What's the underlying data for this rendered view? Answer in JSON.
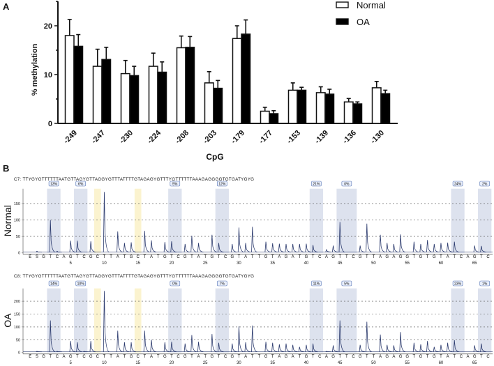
{
  "panel_labels": {
    "a": "A",
    "b": "B"
  },
  "chart_data": [
    {
      "type": "bar",
      "title": "",
      "xlabel": "CpG",
      "ylabel": "% methylation",
      "ylim": [
        0,
        25
      ],
      "yticks": [
        0,
        10,
        20
      ],
      "legend_position": "top-right",
      "categories": [
        "-249",
        "-247",
        "-230",
        "-224",
        "-208",
        "-203",
        "-179",
        "-177",
        "-153",
        "-139",
        "-136",
        "-130"
      ],
      "series": [
        {
          "name": "Normal",
          "color": "#ffffff",
          "values": [
            18.0,
            11.7,
            10.2,
            11.7,
            15.5,
            8.3,
            17.4,
            2.5,
            6.8,
            6.3,
            4.4,
            7.3
          ],
          "error_upper": [
            21.3,
            15.2,
            12.9,
            14.4,
            17.9,
            10.6,
            20.0,
            3.3,
            8.3,
            7.5,
            5.1,
            8.6
          ]
        },
        {
          "name": "OA",
          "color": "#000000",
          "values": [
            15.8,
            13.1,
            9.8,
            10.5,
            15.6,
            7.2,
            18.3,
            2.0,
            6.8,
            6.0,
            4.0,
            6.1
          ],
          "error_upper": [
            18.2,
            15.6,
            11.7,
            12.6,
            17.8,
            8.8,
            21.2,
            2.6,
            7.4,
            7.0,
            4.4,
            6.8
          ]
        }
      ]
    },
    {
      "type": "line",
      "sample": "Normal",
      "sequence_label": "C7: TTYGYGTTTTTTAATGTTAGYGTTAGGYGTTTATTTTGTAGAGYGTTTYGTTTTTTAAAGAGGGGTGTGATYGYG",
      "ylim": [
        0,
        195
      ],
      "yticks": [
        0,
        50,
        100,
        150
      ],
      "xticks": [
        5,
        10,
        15,
        20,
        25,
        30,
        35,
        40,
        45,
        50,
        55,
        60,
        65
      ],
      "dispensation": [
        "E",
        "S",
        "G",
        "T",
        "C",
        "A",
        "G",
        "T",
        "C",
        "G",
        "C",
        "T",
        "T",
        "A",
        "T",
        "G",
        "C",
        "T",
        "A",
        "T",
        "G",
        "T",
        "C",
        "G",
        "T",
        "A",
        "T",
        "G",
        "T",
        "C",
        "G",
        "T",
        "A",
        "T",
        "T",
        "G",
        "T",
        "A",
        "G",
        "A",
        "T",
        "G",
        "T",
        "C",
        "A",
        "G",
        "T",
        "T",
        "C",
        "G",
        "T",
        "T",
        "A",
        "G",
        "A",
        "G",
        "G",
        "T",
        "G",
        "T",
        "G",
        "T",
        "A",
        "T",
        "C",
        "A",
        "G",
        "T",
        "C"
      ],
      "peaks": [
        0,
        5,
        0,
        100,
        5,
        0,
        37,
        37,
        0,
        35,
        0,
        185,
        0,
        65,
        30,
        32,
        0,
        67,
        38,
        0,
        33,
        35,
        0,
        27,
        52,
        30,
        0,
        55,
        30,
        0,
        27,
        77,
        30,
        79,
        0,
        34,
        29,
        28,
        27,
        27,
        27,
        28,
        24,
        0,
        10,
        22,
        94,
        0,
        0,
        22,
        89,
        0,
        55,
        30,
        27,
        56,
        0,
        34,
        27,
        39,
        27,
        30,
        31,
        34,
        0,
        0,
        22,
        21,
        0
      ],
      "cpg_sites": [
        {
          "from": 2,
          "to": 3,
          "percent": "13%"
        },
        {
          "from": 6,
          "to": 7,
          "percent": "6%"
        },
        {
          "from": 20,
          "to": 21,
          "percent": "5%"
        },
        {
          "from": 27,
          "to": 28,
          "percent": "12%"
        },
        {
          "from": 41,
          "to": 42,
          "percent": "21%"
        },
        {
          "from": 45,
          "to": 47,
          "percent": "0%"
        },
        {
          "from": 62,
          "to": 63,
          "percent": "24%"
        },
        {
          "from": 66,
          "to": 67,
          "percent": "2%"
        }
      ],
      "bisulfite_controls": [
        9,
        15
      ],
      "colors": {
        "cpg": "#dde2ee",
        "control": "#fbf3cf",
        "trace": "#2c3b6e"
      }
    },
    {
      "type": "line",
      "sample": "OA",
      "sequence_label": "C8: TTYGYGTTTTTTAATGTTAGYGTTAGGYGTTTATTTTGTAGAGYGTTTYGTTTTTTAAAGAGGGGTGTGATYGYG",
      "ylim": [
        0,
        250
      ],
      "yticks": [
        0,
        50,
        100,
        150,
        200
      ],
      "xticks": [
        5,
        10,
        15,
        20,
        25,
        30,
        35,
        40,
        45,
        50,
        55,
        60,
        65
      ],
      "dispensation": [
        "E",
        "S",
        "G",
        "T",
        "C",
        "A",
        "G",
        "T",
        "C",
        "G",
        "C",
        "T",
        "T",
        "A",
        "T",
        "G",
        "C",
        "T",
        "A",
        "T",
        "G",
        "T",
        "C",
        "G",
        "T",
        "A",
        "T",
        "G",
        "T",
        "C",
        "G",
        "T",
        "A",
        "T",
        "T",
        "G",
        "T",
        "A",
        "G",
        "A",
        "T",
        "G",
        "T",
        "C",
        "A",
        "G",
        "T",
        "T",
        "C",
        "G",
        "T",
        "T",
        "A",
        "G",
        "A",
        "G",
        "G",
        "T",
        "G",
        "T",
        "G",
        "T",
        "A",
        "T",
        "C",
        "A",
        "G",
        "T",
        "C"
      ],
      "peaks": [
        0,
        5,
        0,
        125,
        5,
        0,
        45,
        40,
        5,
        45,
        0,
        240,
        0,
        85,
        40,
        40,
        0,
        85,
        50,
        0,
        40,
        42,
        0,
        35,
        68,
        42,
        0,
        72,
        38,
        0,
        35,
        102,
        40,
        105,
        0,
        42,
        38,
        32,
        35,
        30,
        22,
        30,
        35,
        0,
        5,
        28,
        125,
        0,
        0,
        30,
        120,
        0,
        70,
        30,
        28,
        80,
        0,
        38,
        32,
        45,
        22,
        30,
        38,
        48,
        0,
        0,
        28,
        35,
        0
      ],
      "cpg_sites": [
        {
          "from": 2,
          "to": 3,
          "percent": "14%"
        },
        {
          "from": 6,
          "to": 7,
          "percent": "10%"
        },
        {
          "from": 20,
          "to": 21,
          "percent": "0%"
        },
        {
          "from": 27,
          "to": 28,
          "percent": "7%"
        },
        {
          "from": 41,
          "to": 42,
          "percent": "11%"
        },
        {
          "from": 45,
          "to": 47,
          "percent": "5%"
        },
        {
          "from": 62,
          "to": 63,
          "percent": "23%"
        },
        {
          "from": 66,
          "to": 67,
          "percent": "1%"
        }
      ],
      "bisulfite_controls": [
        9,
        15
      ],
      "colors": {
        "cpg": "#dde2ee",
        "control": "#fbf3cf",
        "trace": "#2c3b6e"
      }
    }
  ]
}
